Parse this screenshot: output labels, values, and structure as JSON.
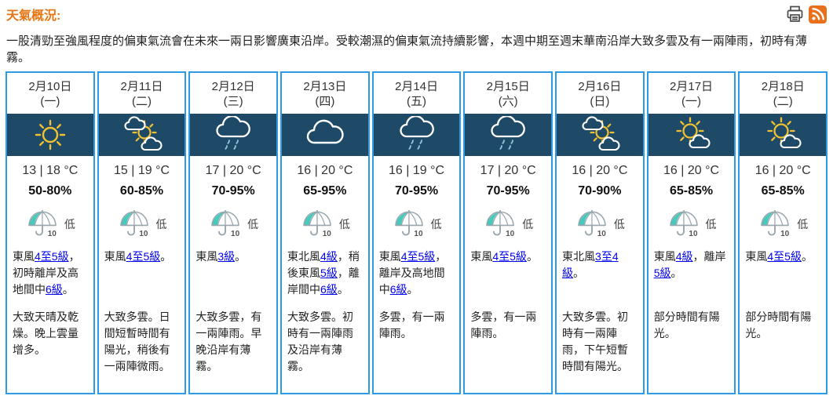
{
  "page": {
    "title": "天氣概況:",
    "summary": "一股清勁至強風程度的偏東氣流會在未來一兩日影響廣東沿岸。受較潮濕的偏東氣流持續影響，本週中期至週末華南沿岸大致多雲及有一兩陣雨，初時有薄霧。"
  },
  "toolbar": {
    "print_icon": "printer-icon",
    "rss_icon": "rss-icon"
  },
  "colors": {
    "title_orange": "#e87511",
    "card_border_blue": "#2e9be6",
    "icon_band_navy": "#1e4a68",
    "link_blue": "#0000ee",
    "sun_yellow": "#f0c232",
    "umbrella_teal": "#45cabb",
    "rss_orange": "#e8701a"
  },
  "cards": [
    {
      "date": "2月10日",
      "weekday": "(一)",
      "icon_name": "sunny-icon",
      "icon_href": "#i-sunny",
      "temp": "13 | 18 °C",
      "humidity": "50-80%",
      "psr_value": "10",
      "psr_label": "低",
      "wind": [
        {
          "t": "東風"
        },
        {
          "t": "4至5級",
          "link": true
        },
        {
          "t": "，初時離岸及高地間中"
        },
        {
          "t": "6級",
          "link": true
        },
        {
          "t": "。"
        }
      ],
      "desc": "大致天晴及乾燥。晚上雲量增多。"
    },
    {
      "date": "2月11日",
      "weekday": "(二)",
      "icon_name": "sun-behind-clouds-icon",
      "icon_href": "#i-sun-clouds",
      "temp": "15 | 19 °C",
      "humidity": "60-85%",
      "psr_value": "10",
      "psr_label": "低",
      "wind": [
        {
          "t": "東風"
        },
        {
          "t": "4至5級",
          "link": true
        },
        {
          "t": "。"
        }
      ],
      "desc": "大致多雲。日間短暫時間有陽光，稍後有一兩陣微雨。"
    },
    {
      "date": "2月12日",
      "weekday": "(三)",
      "icon_name": "rain-cloud-icon",
      "icon_href": "#i-rain",
      "temp": "17 | 20 °C",
      "humidity": "70-95%",
      "psr_value": "10",
      "psr_label": "低",
      "wind": [
        {
          "t": "東風"
        },
        {
          "t": "3級",
          "link": true
        },
        {
          "t": "。"
        }
      ],
      "desc": "大致多雲，有一兩陣雨。早晚沿岸有薄霧。"
    },
    {
      "date": "2月13日",
      "weekday": "(四)",
      "icon_name": "cloudy-icon",
      "icon_href": "#i-cloudy",
      "temp": "16 | 20 °C",
      "humidity": "65-95%",
      "psr_value": "10",
      "psr_label": "低",
      "wind": [
        {
          "t": "東北風"
        },
        {
          "t": "4級",
          "link": true
        },
        {
          "t": "，稍後東風"
        },
        {
          "t": "5級",
          "link": true
        },
        {
          "t": "，離岸間中"
        },
        {
          "t": "6級",
          "link": true
        },
        {
          "t": "。"
        }
      ],
      "desc": "大致多雲。初時有一兩陣雨及沿岸有薄霧。"
    },
    {
      "date": "2月14日",
      "weekday": "(五)",
      "icon_name": "rain-cloud-icon",
      "icon_href": "#i-rain",
      "temp": "16 | 19 °C",
      "humidity": "70-95%",
      "psr_value": "10",
      "psr_label": "低",
      "wind": [
        {
          "t": "東風"
        },
        {
          "t": "4至5級",
          "link": true
        },
        {
          "t": "，離岸及高地間中"
        },
        {
          "t": "6級",
          "link": true
        },
        {
          "t": "。"
        }
      ],
      "desc": "多雲，有一兩陣雨。"
    },
    {
      "date": "2月15日",
      "weekday": "(六)",
      "icon_name": "rain-cloud-icon",
      "icon_href": "#i-rain",
      "temp": "17 | 20 °C",
      "humidity": "70-95%",
      "psr_value": "10",
      "psr_label": "低",
      "wind": [
        {
          "t": "東風"
        },
        {
          "t": "4至5級",
          "link": true
        },
        {
          "t": "。"
        }
      ],
      "desc": "多雲，有一兩陣雨。"
    },
    {
      "date": "2月16日",
      "weekday": "(日)",
      "icon_name": "sun-behind-clouds-icon",
      "icon_href": "#i-sun-clouds",
      "temp": "16 | 20 °C",
      "humidity": "70-90%",
      "psr_value": "10",
      "psr_label": "低",
      "wind": [
        {
          "t": "東北風"
        },
        {
          "t": "3至4級",
          "link": true
        },
        {
          "t": "。"
        }
      ],
      "desc": "大致多雲。初時有一兩陣雨，下午短暫時間有陽光。"
    },
    {
      "date": "2月17日",
      "weekday": "(一)",
      "icon_name": "sun-with-cloud-icon",
      "icon_href": "#i-sun-cloud",
      "temp": "16 | 20 °C",
      "humidity": "65-85%",
      "psr_value": "10",
      "psr_label": "低",
      "wind": [
        {
          "t": "東風"
        },
        {
          "t": "4級",
          "link": true
        },
        {
          "t": "，離岸"
        },
        {
          "t": "5級",
          "link": true
        },
        {
          "t": "。"
        }
      ],
      "desc": "部分時間有陽光。"
    },
    {
      "date": "2月18日",
      "weekday": "(二)",
      "icon_name": "sun-with-cloud-icon",
      "icon_href": "#i-sun-cloud",
      "temp": "16 | 20 °C",
      "humidity": "65-85%",
      "psr_value": "10",
      "psr_label": "低",
      "wind": [
        {
          "t": "東風"
        },
        {
          "t": "4至5級",
          "link": true
        },
        {
          "t": "。"
        }
      ],
      "desc": "部分時間有陽光。"
    }
  ]
}
